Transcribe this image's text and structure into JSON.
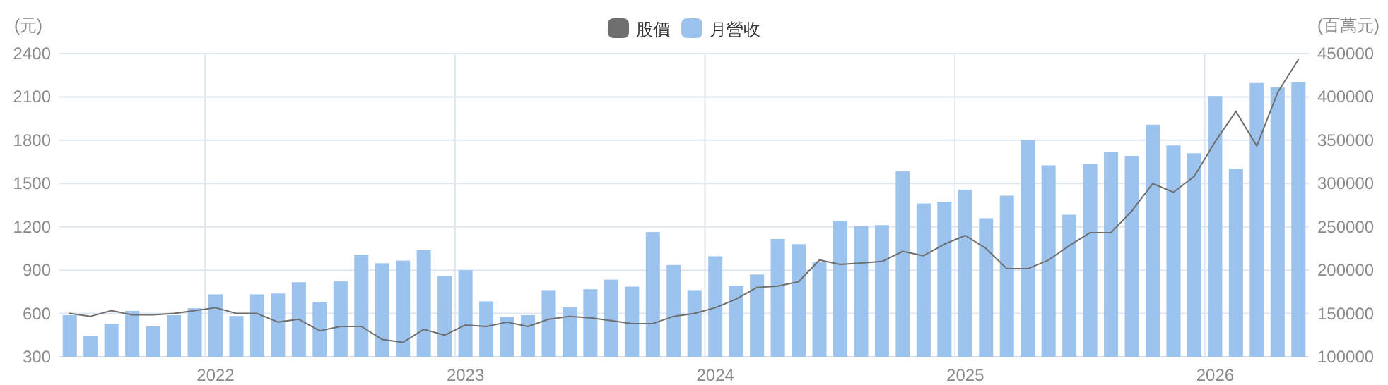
{
  "chart_data": {
    "type": "bar",
    "ylabel": "(元)",
    "y2label": "(百萬元)",
    "categories": [
      null,
      null,
      null,
      null,
      null,
      null,
      null,
      "2022",
      null,
      null,
      null,
      null,
      null,
      null,
      null,
      null,
      null,
      null,
      null,
      "2023",
      null,
      null,
      null,
      null,
      null,
      null,
      null,
      null,
      null,
      null,
      null,
      "2024",
      null,
      null,
      null,
      null,
      null,
      null,
      null,
      null,
      null,
      null,
      null,
      "2025",
      null,
      null,
      null,
      null,
      null,
      null,
      null,
      null,
      null,
      null,
      null,
      "2026",
      null,
      null,
      null,
      null
    ],
    "series": [
      {
        "name": "股價",
        "type": "line",
        "axis": "y",
        "color": "#6e6e6e",
        "values": [
          600,
          580,
          620,
          590,
          590,
          600,
          620,
          640,
          600,
          600,
          540,
          560,
          480,
          510,
          510,
          420,
          400,
          490,
          450,
          520,
          510,
          540,
          510,
          560,
          580,
          570,
          550,
          530,
          530,
          580,
          600,
          640,
          700,
          780,
          790,
          820,
          970,
          940,
          950,
          960,
          1030,
          1000,
          1080,
          1140,
          1050,
          910,
          910,
          970,
          1070,
          1160,
          1160,
          1310,
          1500,
          1440,
          1550,
          1790,
          2000,
          1760,
          2130,
          2360
        ]
      },
      {
        "name": "月營收",
        "axis": "y2",
        "color": "#9cc3ee",
        "values": [
          148000,
          124000,
          138000,
          153000,
          135000,
          148000,
          156000,
          172000,
          147000,
          172000,
          173000,
          186000,
          163000,
          187000,
          218000,
          208000,
          211000,
          223000,
          193000,
          200000,
          164000,
          146000,
          148000,
          177000,
          157000,
          178000,
          189000,
          181000,
          244000,
          206000,
          177000,
          216000,
          182000,
          195000,
          236000,
          230000,
          209000,
          257000,
          251000,
          252000,
          314000,
          277000,
          279000,
          293000,
          260000,
          286000,
          350000,
          321000,
          264000,
          323000,
          336000,
          332000,
          368000,
          344000,
          335000,
          401000,
          317000,
          416000,
          411000,
          417000
        ]
      }
    ],
    "ylim": [
      300,
      2400
    ],
    "yticks": [
      300,
      600,
      900,
      1200,
      1500,
      1800,
      2100,
      2400
    ],
    "y2lim": [
      100000,
      450000
    ],
    "y2ticks": [
      100000,
      150000,
      200000,
      250000,
      300000,
      350000,
      400000,
      450000
    ],
    "grid": true,
    "legend": "top"
  }
}
